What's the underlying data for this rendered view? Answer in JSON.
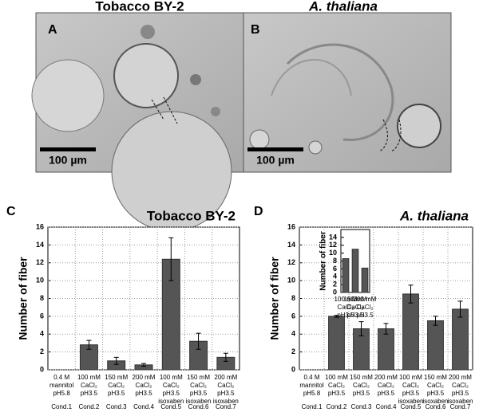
{
  "micrographs": [
    {
      "label": "A",
      "title": "Tobacco BY-2",
      "scale_bar": "100 µm"
    },
    {
      "label": "B",
      "title": "A. thaliana",
      "scale_bar": "100 µm"
    }
  ],
  "chart_data": [
    {
      "type": "bar",
      "panel_label": "C",
      "title": "Tobacco BY-2",
      "ylabel": "Number of fiber",
      "color": "#555555",
      "grid": true,
      "categories": [
        [
          "0.4 M",
          "mannitol",
          "pH5.8"
        ],
        [
          "100 mM",
          "CaCl₂",
          "pH3.5"
        ],
        [
          "150 mM",
          "CaCl₂",
          "pH3.5"
        ],
        [
          "200 mM",
          "CaCl₂",
          "pH3.5"
        ],
        [
          "100 mM",
          "CaCl₂",
          "pH3.5",
          "isoxaben"
        ],
        [
          "150 mM",
          "CaCl₂",
          "pH3.5",
          "isoxaben"
        ],
        [
          "200 mM",
          "CaCl₂",
          "pH3.5",
          "isoxaben"
        ]
      ],
      "conditions": [
        "Cond.1",
        "Cond.2",
        "Cond.3",
        "Cond.4",
        "Cond.5",
        "Cond.6",
        "Cond.7"
      ],
      "values": [
        0,
        2.8,
        1.0,
        0.55,
        12.4,
        3.2,
        1.4
      ],
      "errors": [
        null,
        0.5,
        0.4,
        0.15,
        2.4,
        0.9,
        0.45
      ],
      "ylim": [
        0,
        16
      ],
      "yticks": [
        0,
        2,
        4,
        6,
        8,
        10,
        12,
        14,
        16
      ]
    },
    {
      "type": "bar",
      "panel_label": "D",
      "title": "A. thaliana",
      "ylabel": "Number of fiber",
      "color": "#555555",
      "grid": true,
      "categories": [
        [
          "0.4 M",
          "mannitol",
          "pH5.8"
        ],
        [
          "100 mM",
          "CaCl₂",
          "pH3.5"
        ],
        [
          "150 mM",
          "CaCl₂",
          "pH3.5"
        ],
        [
          "200 mM",
          "CaCl₂",
          "pH3.5"
        ],
        [
          "100 mM",
          "CaCl₂",
          "pH3.5",
          "isoxaben"
        ],
        [
          "150 mM",
          "CaCl₂",
          "pH3.5",
          "isoxaben"
        ],
        [
          "200 mM",
          "CaCl₂",
          "pH3.5",
          "isoxaben"
        ]
      ],
      "conditions": [
        "Cond.1",
        "Cond.2",
        "Cond.3",
        "Cond.4",
        "Cond.5",
        "Cond.6",
        "Cond.7"
      ],
      "values": [
        0,
        6.0,
        4.6,
        4.6,
        8.5,
        5.5,
        6.8
      ],
      "errors": [
        null,
        0.1,
        0.8,
        0.6,
        1.0,
        0.5,
        0.9
      ],
      "ylim": [
        0,
        16
      ],
      "yticks": [
        0,
        2,
        4,
        6,
        8,
        10,
        12,
        14,
        16
      ],
      "inset": {
        "type": "bar",
        "ylabel": "Number of fiber",
        "color": "#555555",
        "categories": [
          [
            "100 mM",
            "CaCl₂",
            "pH3.5"
          ],
          [
            "150 mM",
            "CaCl₂",
            "pH3.5"
          ],
          [
            "200 mM",
            "CaCl₂",
            "pH3.5"
          ]
        ],
        "values": [
          8.6,
          11.0,
          6.2
        ],
        "ylim": [
          0,
          16
        ],
        "yticks": [
          0,
          2,
          4,
          6,
          8,
          10,
          12,
          14
        ]
      }
    }
  ]
}
